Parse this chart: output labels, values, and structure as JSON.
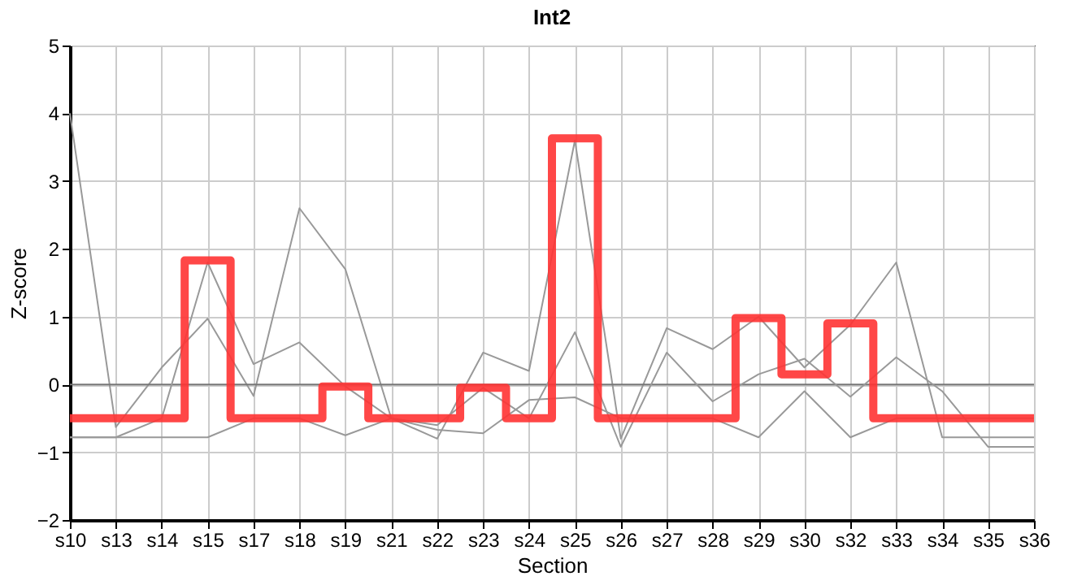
{
  "chart_data": {
    "type": "line",
    "title": "Int2",
    "xlabel": "Section",
    "ylabel": "Z-score",
    "categories": [
      "s10",
      "s13",
      "s14",
      "s15",
      "s17",
      "s18",
      "s19",
      "s21",
      "s22",
      "s23",
      "s24",
      "s25",
      "s26",
      "s27",
      "s28",
      "s29",
      "s30",
      "s32",
      "s33",
      "s34",
      "s35",
      "s36"
    ],
    "series": [
      {
        "type": "line",
        "color": "#999999",
        "values": [
          4.0,
          -0.63,
          0.25,
          0.97,
          -0.17,
          2.6,
          1.7,
          -0.5,
          -0.8,
          0.47,
          0.2,
          3.6,
          -0.8,
          0.83,
          0.52,
          1.0,
          0.25,
          0.88,
          1.8,
          -0.78,
          -0.78,
          -0.78
        ]
      },
      {
        "type": "line",
        "color": "#999999",
        "values": [
          -0.78,
          -0.78,
          -0.5,
          1.8,
          0.3,
          0.62,
          -0.03,
          -0.5,
          -0.6,
          -0.05,
          -0.5,
          0.77,
          -0.92,
          0.47,
          -0.25,
          0.15,
          0.38,
          -0.18,
          0.4,
          -0.1,
          -0.92,
          -0.92
        ]
      },
      {
        "type": "line",
        "color": "#999999",
        "values": [
          -0.78,
          -0.78,
          -0.78,
          -0.78,
          -0.5,
          -0.5,
          -0.75,
          -0.5,
          -0.67,
          -0.72,
          -0.23,
          -0.19,
          -0.5,
          -0.5,
          -0.5,
          -0.78,
          -0.1,
          -0.78,
          -0.5,
          -0.5,
          -0.5,
          -0.5
        ]
      },
      {
        "type": "step",
        "color": "#ff3333",
        "values": [
          -0.5,
          -0.5,
          -0.5,
          1.83,
          -0.5,
          -0.5,
          -0.03,
          -0.5,
          -0.5,
          -0.05,
          -0.5,
          3.63,
          -0.5,
          -0.5,
          -0.5,
          0.98,
          0.15,
          0.9,
          -0.5,
          -0.5,
          -0.5,
          -0.5
        ]
      }
    ],
    "ylim": [
      -2,
      5
    ],
    "yticks": [
      -2,
      -1,
      0,
      1,
      2,
      3,
      4,
      5
    ],
    "ref_lines": [
      {
        "axis": "y",
        "value": 0,
        "color": "#777777"
      }
    ],
    "grid": true
  }
}
